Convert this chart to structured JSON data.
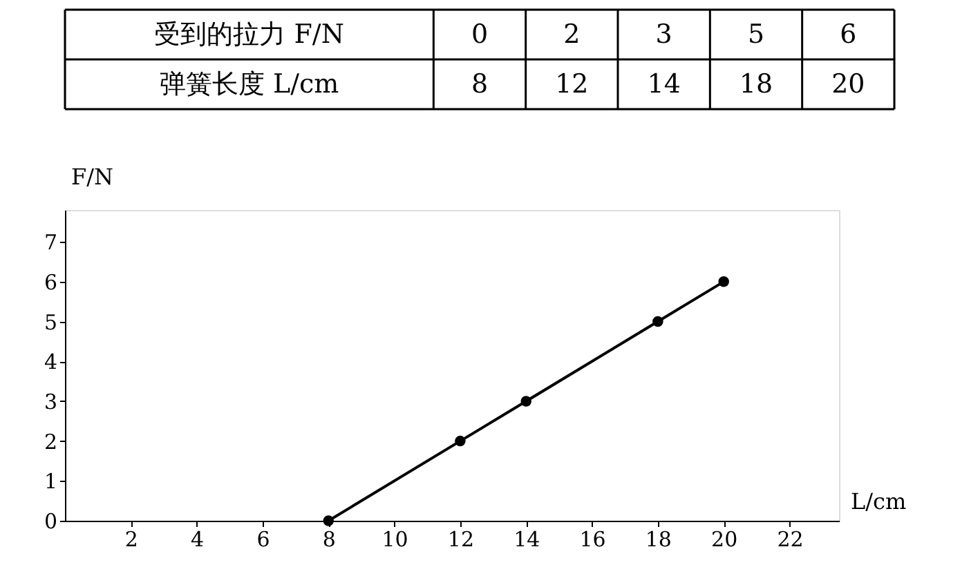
{
  "chart_data": [
    {
      "type": "other",
      "annotations": [
        "受到的拉力 F/N",
        "0",
        "2",
        "3",
        "5",
        "6",
        "弹簧长度 L/cm",
        "8",
        "12",
        "14",
        "18",
        "20"
      ]
    },
    {
      "type": "line",
      "xlabel": "L/cm",
      "ylabel": "F/N",
      "x": [
        8,
        12,
        14,
        18,
        20
      ],
      "series": [
        {
          "color": "#000000",
          "values": [
            0,
            2,
            3,
            5,
            6
          ]
        }
      ],
      "xlim": [
        0,
        23.5
      ],
      "ylim": [
        0,
        7.8
      ],
      "xticks": [
        2,
        4,
        6,
        8,
        10,
        12,
        14,
        16,
        18,
        20,
        22
      ],
      "yticks": [
        0,
        1,
        2,
        3,
        4,
        5,
        6,
        7
      ],
      "grid": false,
      "legend": false,
      "marker": "circle",
      "line_style": "solid"
    }
  ]
}
